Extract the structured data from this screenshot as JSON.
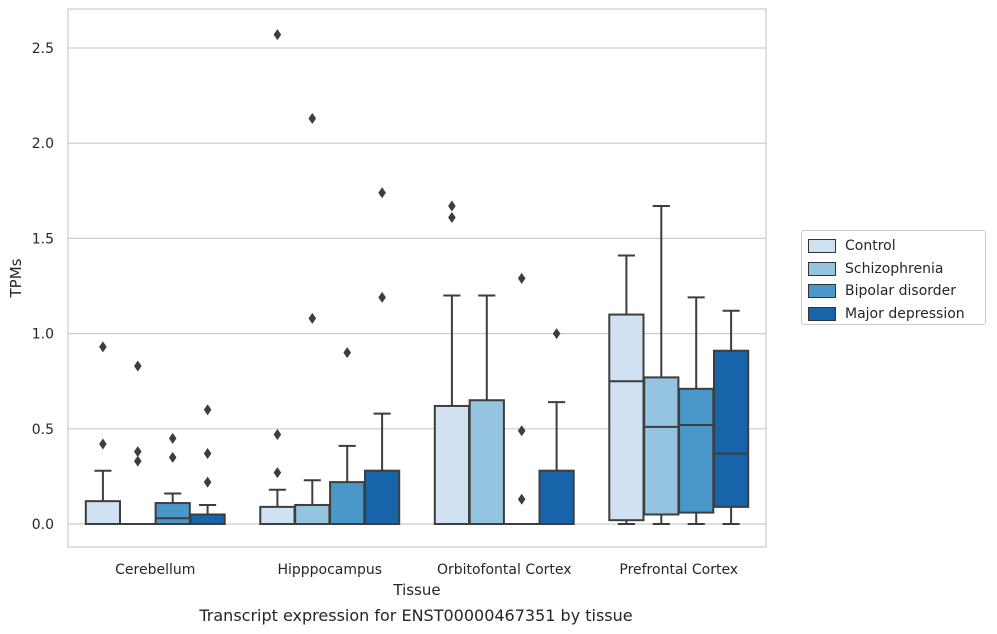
{
  "chart_data": {
    "type": "box",
    "title": "Transcript expression for ENST00000467351 by tissue",
    "xlabel": "Tissue",
    "ylabel": "TPMs",
    "ylim": [
      -0.125,
      2.7
    ],
    "yticks": [
      0.0,
      0.5,
      1.0,
      1.5,
      2.0,
      2.5
    ],
    "ytick_labels": [
      "0.0",
      "0.5",
      "1.0",
      "1.5",
      "2.0",
      "2.5"
    ],
    "grid": "horizontal",
    "legend_position": "right",
    "categories": [
      "Cerebellum",
      "Hipppocampus",
      "Orbitofontal Cortex",
      "Prefrontal Cortex"
    ],
    "series": [
      {
        "name": "Control",
        "color": "#d0e1f2",
        "boxes": [
          {
            "whislo": 0.0,
            "q1": 0.0,
            "med": 0.0,
            "q3": 0.12,
            "whishi": 0.28,
            "fliers": [
              0.42,
              0.93
            ]
          },
          {
            "whislo": 0.0,
            "q1": 0.0,
            "med": 0.0,
            "q3": 0.09,
            "whishi": 0.18,
            "fliers": [
              0.27,
              0.47,
              2.57
            ]
          },
          {
            "whislo": 0.0,
            "q1": 0.0,
            "med": 0.0,
            "q3": 0.62,
            "whishi": 1.2,
            "fliers": [
              1.61,
              1.67
            ]
          },
          {
            "whislo": 0.0,
            "q1": 0.02,
            "med": 0.75,
            "q3": 1.1,
            "whishi": 1.41,
            "fliers": []
          }
        ]
      },
      {
        "name": "Schizophrenia",
        "color": "#94c4df",
        "boxes": [
          {
            "whislo": 0.0,
            "q1": 0.0,
            "med": 0.0,
            "q3": 0.0,
            "whishi": 0.0,
            "fliers": [
              0.33,
              0.38,
              0.83
            ]
          },
          {
            "whislo": 0.0,
            "q1": 0.0,
            "med": 0.0,
            "q3": 0.1,
            "whishi": 0.23,
            "fliers": [
              1.08,
              2.13
            ]
          },
          {
            "whislo": 0.0,
            "q1": 0.0,
            "med": 0.0,
            "q3": 0.65,
            "whishi": 1.2,
            "fliers": []
          },
          {
            "whislo": 0.0,
            "q1": 0.05,
            "med": 0.51,
            "q3": 0.77,
            "whishi": 1.67,
            "fliers": []
          }
        ]
      },
      {
        "name": "Bipolar disorder",
        "color": "#4a98c9",
        "boxes": [
          {
            "whislo": 0.0,
            "q1": 0.0,
            "med": 0.03,
            "q3": 0.11,
            "whishi": 0.16,
            "fliers": [
              0.35,
              0.45
            ]
          },
          {
            "whislo": 0.0,
            "q1": 0.0,
            "med": 0.0,
            "q3": 0.22,
            "whishi": 0.41,
            "fliers": [
              0.9
            ]
          },
          {
            "whislo": 0.0,
            "q1": 0.0,
            "med": 0.0,
            "q3": 0.0,
            "whishi": 0.0,
            "fliers": [
              0.13,
              0.49,
              1.29
            ]
          },
          {
            "whislo": 0.0,
            "q1": 0.06,
            "med": 0.52,
            "q3": 0.71,
            "whishi": 1.19,
            "fliers": []
          }
        ]
      },
      {
        "name": "Major depression",
        "color": "#1764ab",
        "boxes": [
          {
            "whislo": 0.0,
            "q1": 0.0,
            "med": 0.0,
            "q3": 0.05,
            "whishi": 0.1,
            "fliers": [
              0.22,
              0.37,
              0.6
            ]
          },
          {
            "whislo": 0.0,
            "q1": 0.0,
            "med": 0.0,
            "q3": 0.28,
            "whishi": 0.58,
            "fliers": [
              1.19,
              1.74
            ]
          },
          {
            "whislo": 0.0,
            "q1": 0.0,
            "med": 0.0,
            "q3": 0.28,
            "whishi": 0.64,
            "fliers": [
              1.0
            ]
          },
          {
            "whislo": 0.0,
            "q1": 0.09,
            "med": 0.37,
            "q3": 0.91,
            "whishi": 1.12,
            "fliers": []
          }
        ]
      }
    ]
  }
}
